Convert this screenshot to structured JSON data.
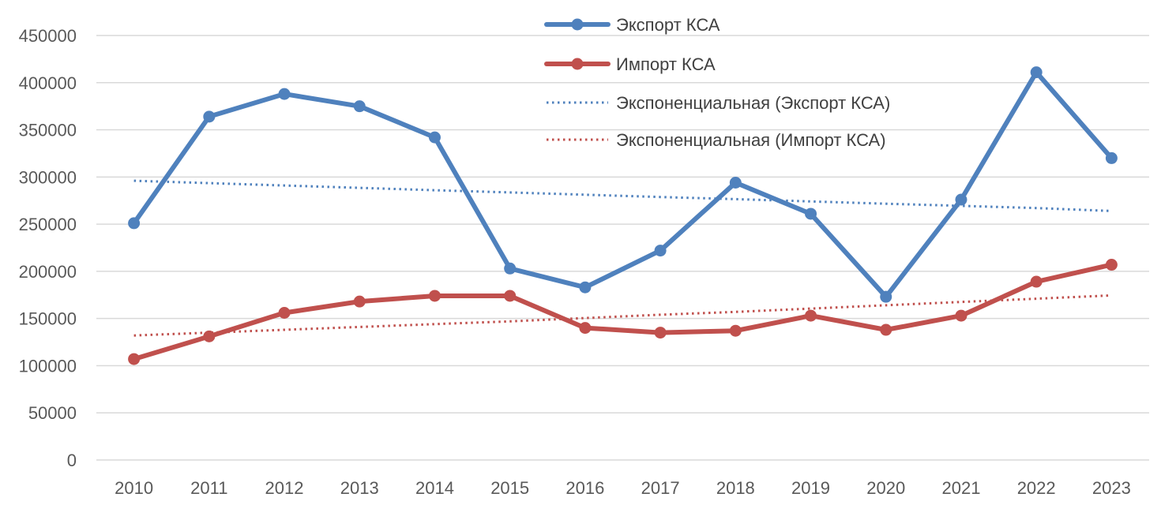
{
  "chart_data": {
    "type": "line",
    "title": "",
    "xlabel": "",
    "ylabel": "",
    "categories": [
      "2010",
      "2011",
      "2012",
      "2013",
      "2014",
      "2015",
      "2016",
      "2017",
      "2018",
      "2019",
      "2020",
      "2021",
      "2022",
      "2023"
    ],
    "ylim": [
      0,
      450000
    ],
    "yticks": [
      0,
      50000,
      100000,
      150000,
      200000,
      250000,
      300000,
      350000,
      400000,
      450000
    ],
    "grid": true,
    "legend_position": "top-center",
    "series": [
      {
        "name": "Экспорт КСА",
        "style": "solid-markers",
        "color": "#4F81BD",
        "values": [
          251000,
          364000,
          388000,
          375000,
          342000,
          203000,
          183000,
          222000,
          294000,
          261000,
          173000,
          276000,
          411000,
          320000
        ]
      },
      {
        "name": "Импорт КСА",
        "style": "solid-markers",
        "color": "#C0504D",
        "values": [
          107000,
          131000,
          156000,
          168000,
          174000,
          174000,
          140000,
          135000,
          137000,
          153000,
          138000,
          153000,
          189000,
          207000
        ]
      },
      {
        "name": "Экспоненциальная (Экспорт КСА)",
        "style": "dotted",
        "color": "#4F81BD",
        "values": [
          296000,
          293500,
          291000,
          288500,
          286000,
          283600,
          281200,
          278800,
          276500,
          274100,
          271700,
          269400,
          267100,
          264000
        ]
      },
      {
        "name": "Экспоненциальная (Импорт КСА)",
        "style": "dotted",
        "color": "#C0504D",
        "values": [
          132000,
          135000,
          138000,
          141000,
          144000,
          147000,
          150500,
          154000,
          157000,
          160500,
          164000,
          167500,
          171000,
          174500
        ]
      }
    ]
  }
}
